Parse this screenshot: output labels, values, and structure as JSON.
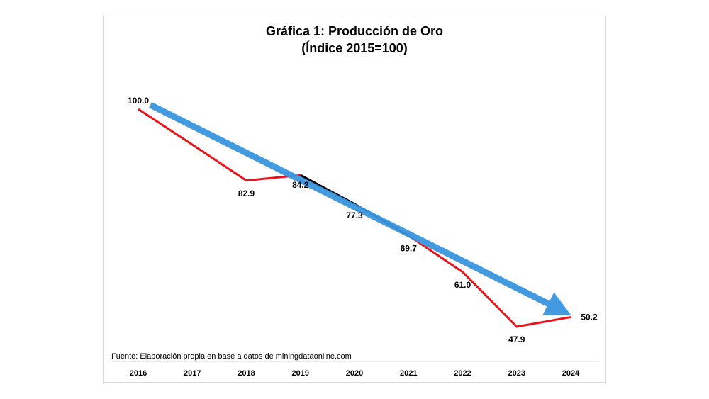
{
  "chart_data": {
    "type": "line",
    "title": "Gráfica 1: Producción de Oro",
    "subtitle": "(Índice 2015=100)",
    "source": "Fuente: Elaboración propia en base a datos de miningdataonline.com",
    "categories": [
      "2016",
      "2017",
      "2018",
      "2019",
      "2020",
      "2021",
      "2022",
      "2023",
      "2024"
    ],
    "series": [
      {
        "values": [
          100.0,
          91.5,
          82.9,
          84.2,
          77.3,
          69.7,
          61.0,
          47.9,
          50.2
        ],
        "labels": [
          "100.0",
          null,
          "82.9",
          "84.2",
          "77.3",
          "69.7",
          "61.0",
          "47.9",
          "50.2"
        ]
      }
    ],
    "trend_arrow": {
      "from": 100.0,
      "to": 50.2
    },
    "ylim": [
      40,
      105
    ],
    "grid": false,
    "legend": "none",
    "colors": {
      "line": "#e8141b",
      "highlight": "#000000",
      "arrow": "#3a95dd"
    }
  }
}
